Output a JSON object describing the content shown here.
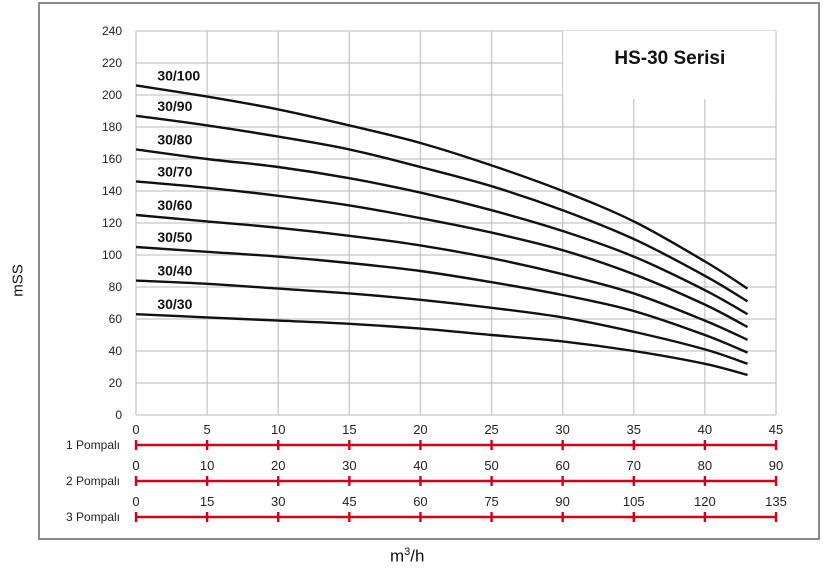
{
  "chart_data": {
    "type": "line",
    "title": "HS-30 Serisi",
    "ylabel": "mSS",
    "xlabel": "m3/h",
    "xlabel_base": "m",
    "xlabel_sup": "3",
    "xlabel_tail": "/h",
    "ylim": [
      0,
      240
    ],
    "xlim": [
      0,
      45
    ],
    "y_ticks": [
      0,
      20,
      40,
      60,
      80,
      100,
      120,
      140,
      160,
      180,
      200,
      220,
      240
    ],
    "grid": true,
    "flow_scales": [
      {
        "label": "1 Pompalı",
        "ticks": [
          0,
          5,
          10,
          15,
          20,
          25,
          30,
          35,
          40,
          45
        ]
      },
      {
        "label": "2 Pompalı",
        "ticks": [
          0,
          10,
          20,
          30,
          40,
          50,
          60,
          70,
          80,
          90
        ]
      },
      {
        "label": "3 Pompalı",
        "ticks": [
          0,
          15,
          30,
          45,
          60,
          75,
          90,
          105,
          120,
          135
        ]
      }
    ],
    "scale_color": "#d0021b",
    "x": [
      0,
      5,
      10,
      15,
      20,
      25,
      30,
      35,
      40,
      43
    ],
    "series": [
      {
        "name": "30/100",
        "values": [
          206,
          199,
          191,
          181,
          170,
          156,
          140,
          121,
          96,
          79
        ]
      },
      {
        "name": "30/90",
        "values": [
          187,
          181,
          174,
          166,
          155,
          143,
          128,
          110,
          87,
          71
        ]
      },
      {
        "name": "30/80",
        "values": [
          166,
          160,
          155,
          148,
          139,
          128,
          115,
          99,
          78,
          63
        ]
      },
      {
        "name": "30/70",
        "values": [
          146,
          142,
          137,
          131,
          123,
          114,
          103,
          88,
          69,
          55
        ]
      },
      {
        "name": "30/60",
        "values": [
          125,
          121,
          117,
          112,
          106,
          98,
          88,
          76,
          59,
          47
        ]
      },
      {
        "name": "30/50",
        "values": [
          105,
          102,
          99,
          95,
          90,
          83,
          75,
          65,
          50,
          39
        ]
      },
      {
        "name": "30/40",
        "values": [
          84,
          82,
          79,
          76,
          72,
          67,
          61,
          52,
          41,
          32
        ]
      },
      {
        "name": "30/30",
        "values": [
          63,
          61,
          59,
          57,
          54,
          50,
          46,
          40,
          32,
          25
        ]
      }
    ]
  }
}
